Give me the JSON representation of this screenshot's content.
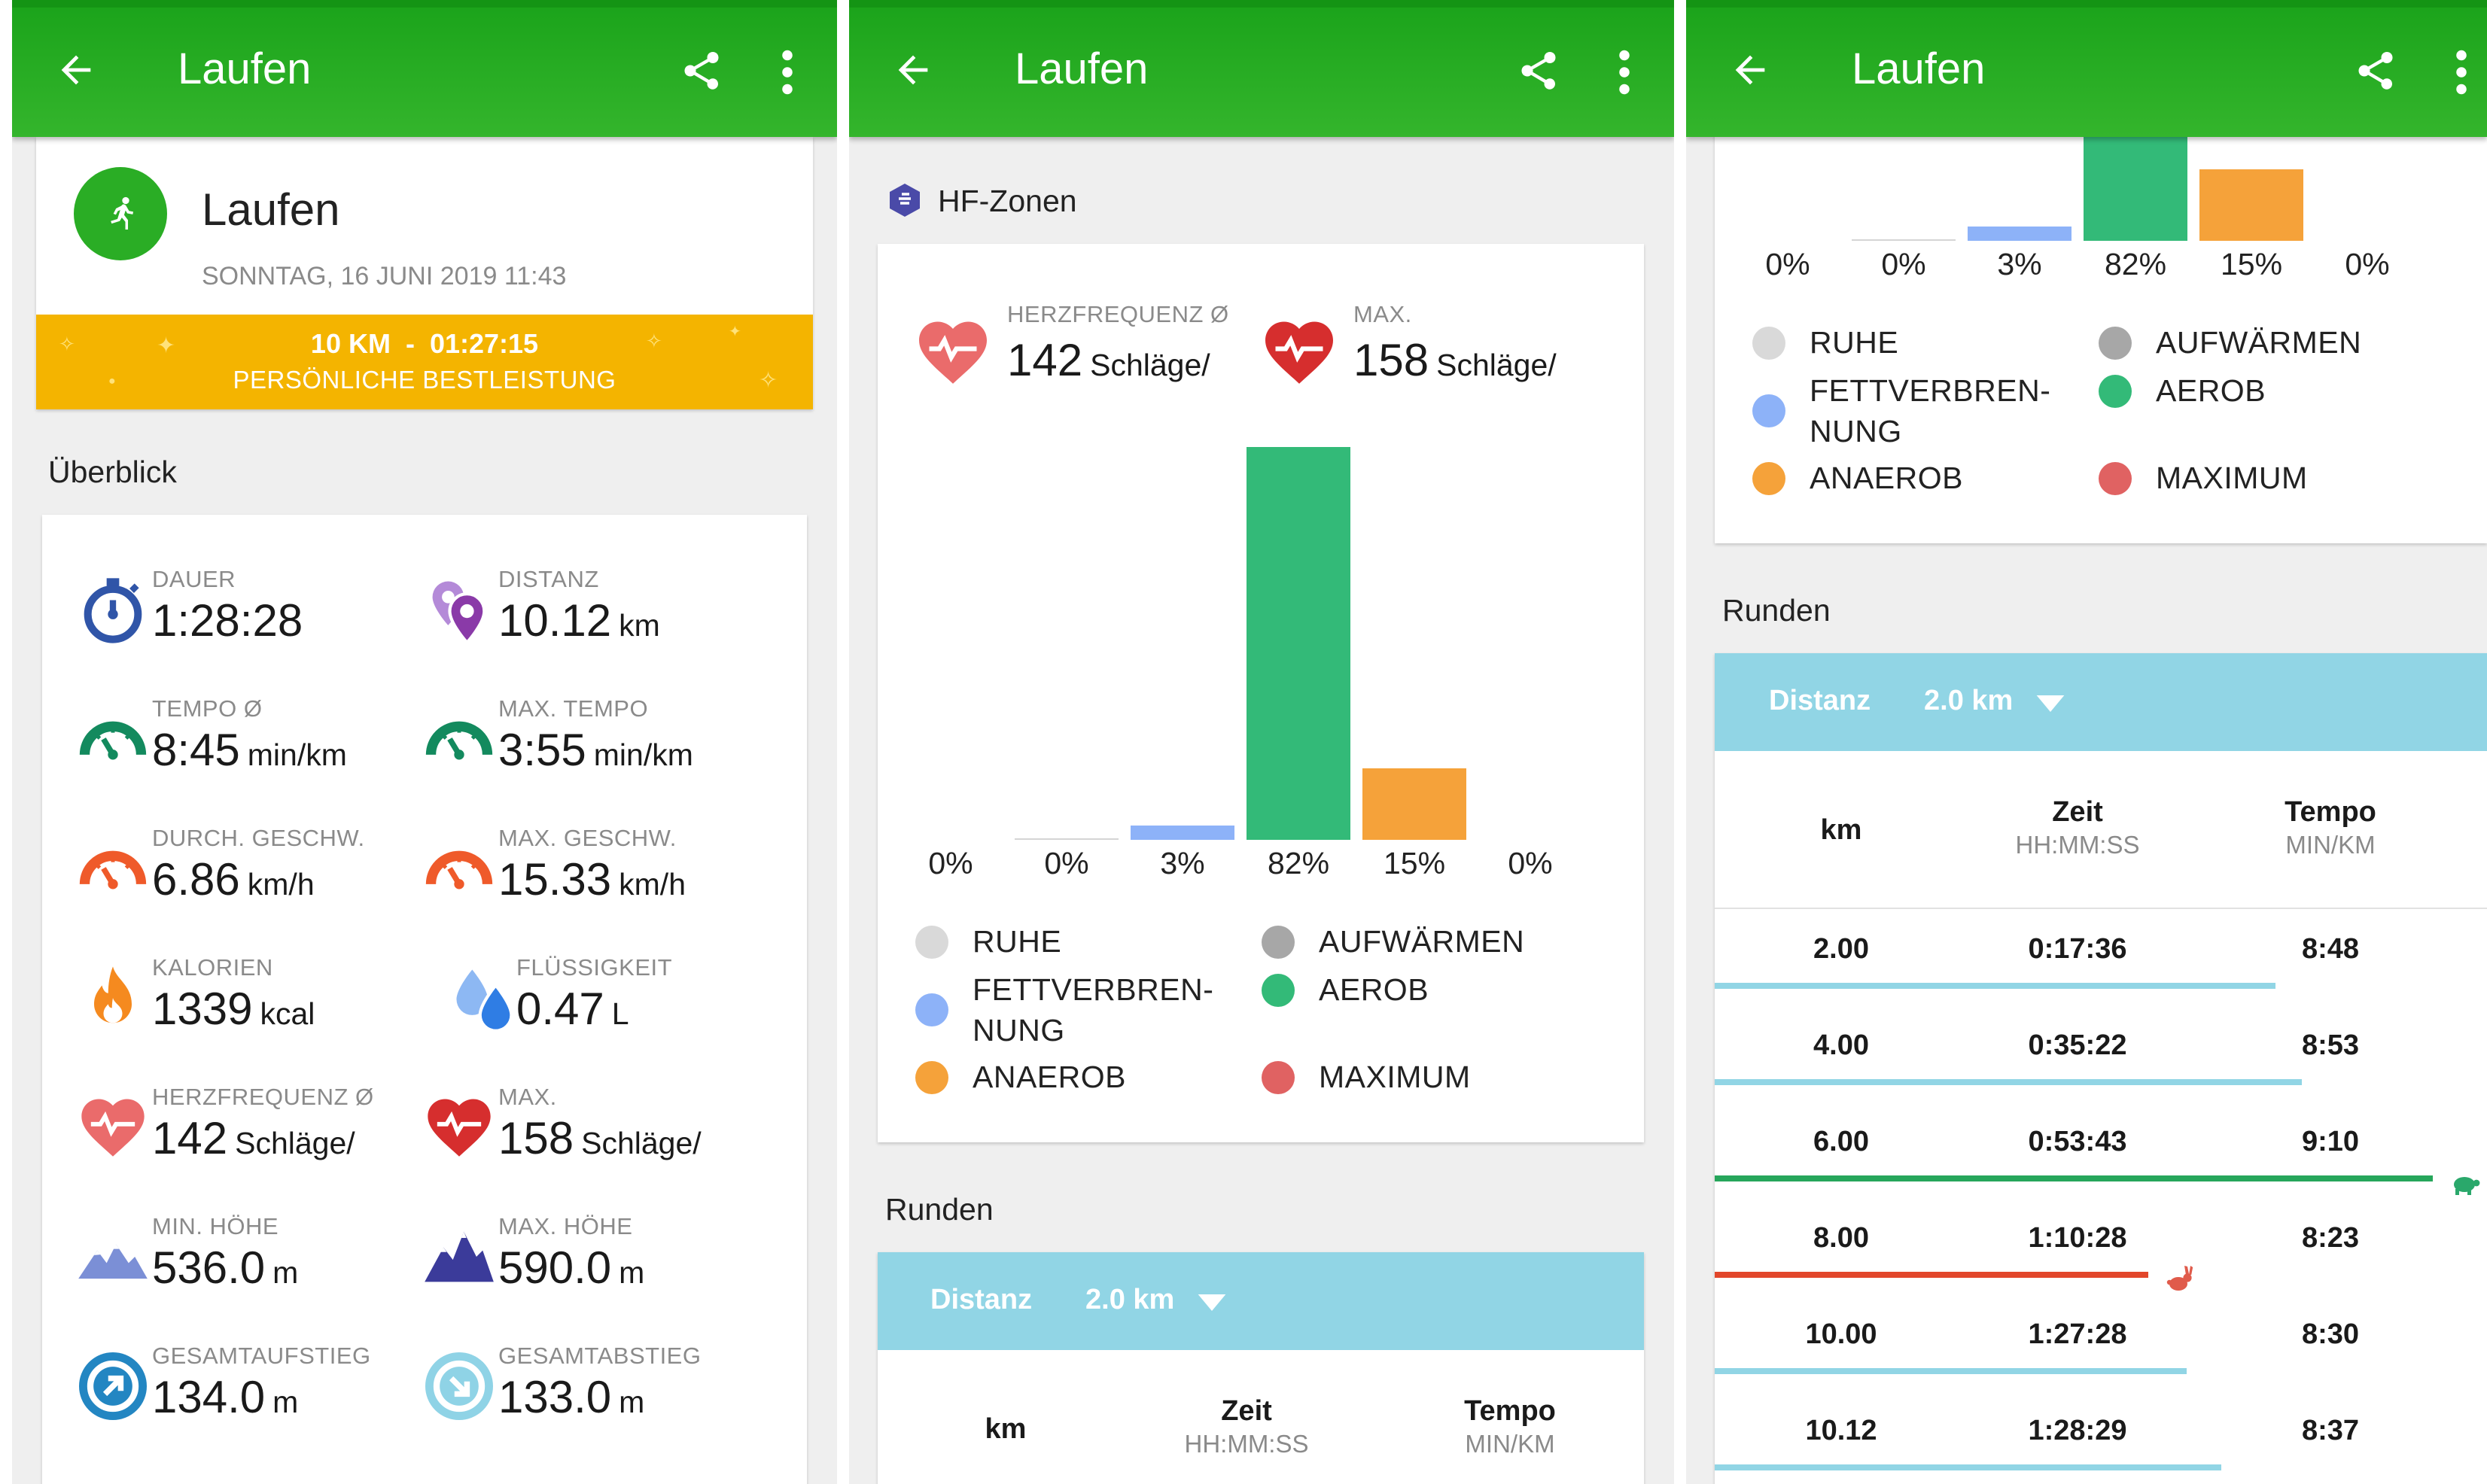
{
  "app": {
    "title": "Laufen"
  },
  "colors": {
    "green": "#2aad25",
    "zone_ruhe": "#d9d9d9",
    "zone_aufwaermen": "#a7a7a7",
    "zone_fett": "#8db2f8",
    "zone_aerob": "#33ba78",
    "zone_anaerob": "#f5a23a",
    "zone_maximum": "#e06262",
    "lap_normal": "#91d5e5",
    "lap_slowest": "#26a65b",
    "lap_fastest": "#e2472b"
  },
  "activity": {
    "name": "Laufen",
    "date": "SONNTAG, 16 JUNI 2019 11:43",
    "best_line1": "10 KM  -  01:27:15",
    "best_line2": "PERSÖNLICHE BESTLEISTUNG"
  },
  "overview": {
    "title": "Überblick",
    "stats": [
      {
        "icon": "stopwatch-icon",
        "label": "DAUER",
        "value": "1:28:28",
        "unit": ""
      },
      {
        "icon": "location-pin-icon",
        "label": "DISTANZ",
        "value": "10.12",
        "unit": "km"
      },
      {
        "icon": "speedometer-icon",
        "label": "TEMPO Ø",
        "value": "8:45",
        "unit": "min/km"
      },
      {
        "icon": "speedometer-icon",
        "label": "MAX. TEMPO",
        "value": "3:55",
        "unit": "min/km"
      },
      {
        "icon": "speedometer-orange-icon",
        "label": "DURCH. GESCHW.",
        "value": "6.86",
        "unit": "km/h"
      },
      {
        "icon": "speedometer-orange-icon",
        "label": "MAX. GESCHW.",
        "value": "15.33",
        "unit": "km/h"
      },
      {
        "icon": "flame-icon",
        "label": "KALORIEN",
        "value": "1339",
        "unit": "kcal"
      },
      {
        "icon": "water-drops-icon",
        "label": "FLÜSSIGKEIT",
        "value": "0.47",
        "unit": "L"
      },
      {
        "icon": "heart-icon",
        "label": "HERZFREQUENZ Ø",
        "value": "142",
        "unit": "Schläge/"
      },
      {
        "icon": "heart-red-icon",
        "label": "MAX.",
        "value": "158",
        "unit": "Schläge/"
      },
      {
        "icon": "mountain-icon",
        "label": "MIN. HÖHE",
        "value": "536.0",
        "unit": "m"
      },
      {
        "icon": "mountain-dark-icon",
        "label": "MAX. HÖHE",
        "value": "590.0",
        "unit": "m"
      },
      {
        "icon": "ascent-icon",
        "label": "GESAMTAUFSTIEG",
        "value": "134.0",
        "unit": "m"
      },
      {
        "icon": "descent-icon",
        "label": "GESAMTABSTIEG",
        "value": "133.0",
        "unit": "m"
      }
    ]
  },
  "hr_zones": {
    "title": "HF-Zonen",
    "avg_label": "HERZFREQUENZ Ø",
    "avg_value": "142",
    "avg_unit": "Schläge/",
    "max_label": "MAX.",
    "max_value": "158",
    "max_unit": "Schläge/",
    "legend": [
      "RUHE",
      "AUFWÄRMEN",
      "FETTVERBREN-\nNUNG",
      "AEROB",
      "ANAEROB",
      "MAXIMUM"
    ]
  },
  "chart_data": {
    "type": "bar",
    "categories": [
      "RUHE",
      "AUFWÄRMEN",
      "FETTVERBRENNUNG",
      "AEROB",
      "ANAEROB",
      "MAXIMUM"
    ],
    "values": [
      0,
      0,
      3,
      82,
      15,
      0
    ],
    "labels": [
      "0%",
      "0%",
      "3%",
      "82%",
      "15%",
      "0%"
    ],
    "colors": [
      "#d9d9d9",
      "#a7a7a7",
      "#8db2f8",
      "#33ba78",
      "#f5a23a",
      "#e06262"
    ],
    "ylim": [
      0,
      100
    ]
  },
  "laps": {
    "title": "Runden",
    "distance_label": "Distanz",
    "distance_value": "2.0 km",
    "col_km": "km",
    "col_time": "Zeit",
    "col_time_sub": "HH:MM:SS",
    "col_pace": "Tempo",
    "col_pace_sub": "MIN/KM",
    "rows": [
      {
        "km": "2.00",
        "time": "0:17:36",
        "pace": "8:48",
        "bar": 0.73,
        "marker": ""
      },
      {
        "km": "4.00",
        "time": "0:35:22",
        "pace": "8:53",
        "bar": 0.765,
        "marker": ""
      },
      {
        "km": "6.00",
        "time": "0:53:43",
        "pace": "9:10",
        "bar": 0.935,
        "marker": "turtle-icon"
      },
      {
        "km": "8.00",
        "time": "1:10:28",
        "pace": "8:23",
        "bar": 0.565,
        "marker": "rabbit-icon"
      },
      {
        "km": "10.00",
        "time": "1:27:28",
        "pace": "8:30",
        "bar": 0.615,
        "marker": ""
      },
      {
        "km": "10.12",
        "time": "1:28:29",
        "pace": "8:37",
        "bar": 0.66,
        "marker": ""
      }
    ]
  }
}
